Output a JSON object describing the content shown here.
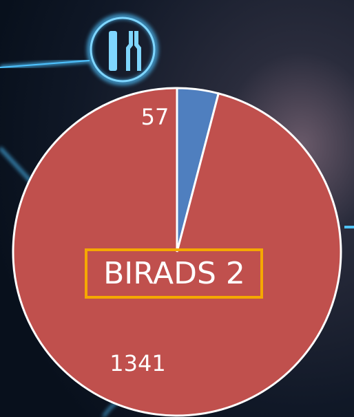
{
  "chart_data": {
    "type": "pie",
    "title": "BIRADS 2",
    "values": [
      57,
      1341
    ],
    "colors": [
      "#4f7fbf",
      "#c0504d"
    ]
  }
}
